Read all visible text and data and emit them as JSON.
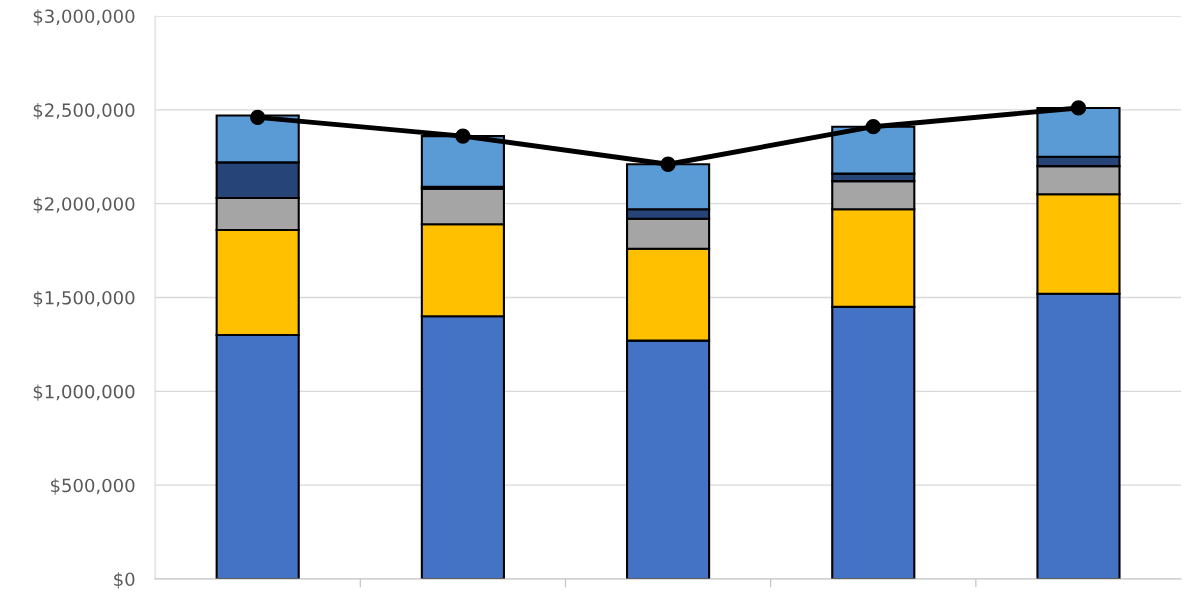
{
  "chart_data": {
    "type": "bar",
    "stacked": true,
    "categories": [
      null,
      null,
      null,
      null,
      null
    ],
    "series": [
      {
        "color": "#4472c4",
        "values": [
          1300000,
          1400000,
          1270000,
          1450000,
          1520000
        ]
      },
      {
        "color": "#ffc000",
        "values": [
          560000,
          490000,
          490000,
          520000,
          530000
        ]
      },
      {
        "color": "#a5a5a5",
        "values": [
          170000,
          190000,
          160000,
          150000,
          150000
        ]
      },
      {
        "color": "#264478",
        "values": [
          190000,
          10000,
          50000,
          40000,
          50000
        ]
      },
      {
        "color": "#5b9bd5",
        "values": [
          250000,
          270000,
          240000,
          250000,
          260000
        ]
      },
      {
        "type": "line",
        "color": "#000000",
        "marker": "circle",
        "values": [
          2460000,
          2360000,
          2210000,
          2410000,
          2510000
        ]
      }
    ],
    "ylim": [
      0,
      3000000
    ],
    "yticks": [
      {
        "value": 0,
        "label": "$0"
      },
      {
        "value": 500000,
        "label": "$500,000"
      },
      {
        "value": 1000000,
        "label": "$1,000,000"
      },
      {
        "value": 1500000,
        "label": "$1,500,000"
      },
      {
        "value": 2000000,
        "label": "$2,000,000"
      },
      {
        "value": 2500000,
        "label": "$2,500,000"
      },
      {
        "value": 3000000,
        "label": "$3,000,000"
      }
    ],
    "grid": "y",
    "legend": false
  }
}
